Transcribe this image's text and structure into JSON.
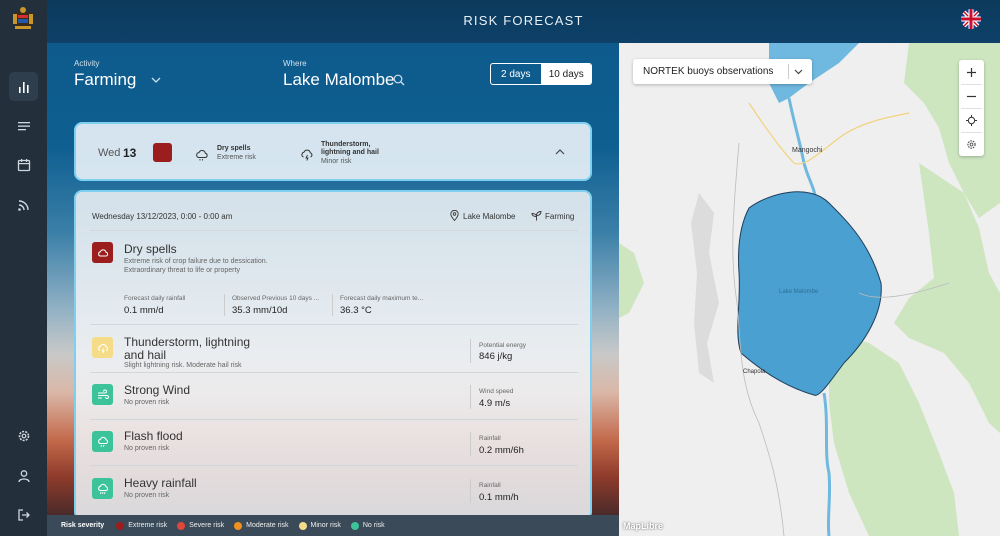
{
  "app": {
    "title": "RISK FORECAST",
    "language_flag": "uk-flag-icon"
  },
  "sidebar": {
    "items": [
      {
        "name": "chart-icon",
        "active": true
      },
      {
        "name": "list-icon",
        "active": false
      },
      {
        "name": "calendar-icon",
        "active": false
      },
      {
        "name": "signal-icon",
        "active": false
      },
      {
        "name": "gear-icon",
        "active": false
      },
      {
        "name": "user-icon",
        "active": false
      },
      {
        "name": "logout-icon",
        "active": false
      }
    ]
  },
  "filters": {
    "activity_label": "Activity",
    "activity_value": "Farming",
    "where_label": "Where",
    "where_value": "Lake Malombe",
    "range_options": [
      "2 days",
      "10 days"
    ],
    "range_selected": "2 days"
  },
  "day_summary": {
    "day_name": "Wed",
    "day_num": "13",
    "severity_color": "#9b1d1d",
    "risks": [
      {
        "title": "Dry spells",
        "sub": "Extreme risk"
      },
      {
        "title": "Thunderstorm, lightning and hail",
        "sub": "Minor risk"
      }
    ]
  },
  "detail": {
    "datetime": "Wednesday 13/12/2023, 0:00 - 0:00 am",
    "where": "Lake Malombe",
    "activity": "Farming",
    "dry": {
      "title": "Dry spells",
      "desc": "Extreme risk of crop failure due to dessication. Extraordinary threat to life or property",
      "color": "#9b1d1d",
      "metrics": [
        {
          "label": "Forecast daily rainfall",
          "value": "0.1 mm/d"
        },
        {
          "label": "Observed Previous 10 days ...",
          "value": "35.3 mm/10d"
        },
        {
          "label": "Forecast daily maximum te...",
          "value": "36.3 °C"
        }
      ]
    },
    "thunder": {
      "title": "Thunderstorm, lightning and hail",
      "desc": "Slight lightning risk. Moderate hail risk",
      "color": "#f5dc88",
      "metric_label": "Potential energy",
      "metric_value": "846 j/kg"
    },
    "wind": {
      "title": "Strong Wind",
      "desc": "No proven risk",
      "color": "#3cc39a",
      "metric_label": "Wind speed",
      "metric_value": "4.9 m/s"
    },
    "flood": {
      "title": "Flash flood",
      "desc": "No proven risk",
      "color": "#3cc39a",
      "metric_label": "Rainfall",
      "metric_value": "0.2 mm/6h"
    },
    "heavy": {
      "title": "Heavy rainfall",
      "desc": "No proven risk",
      "color": "#3cc39a",
      "metric_label": "Rainfall",
      "metric_value": "0.1 mm/h"
    }
  },
  "legend": {
    "label": "Risk severity",
    "items": [
      {
        "label": "Extreme risk",
        "color": "#9b1d1d"
      },
      {
        "label": "Severe risk",
        "color": "#e0463a"
      },
      {
        "label": "Moderate risk",
        "color": "#ef9020"
      },
      {
        "label": "Minor risk",
        "color": "#f5dc88"
      },
      {
        "label": "No risk",
        "color": "#3cc39a"
      }
    ]
  },
  "map": {
    "layer_select": "NORTEK buoys observations",
    "labels": {
      "mangochi": "Mangochi",
      "lake": "Lake Malombe",
      "chapola": "Chapola"
    },
    "attribution": "MapLibre",
    "controls": [
      "zoom-in-icon",
      "zoom-out-icon",
      "locate-icon",
      "gear-icon"
    ]
  }
}
